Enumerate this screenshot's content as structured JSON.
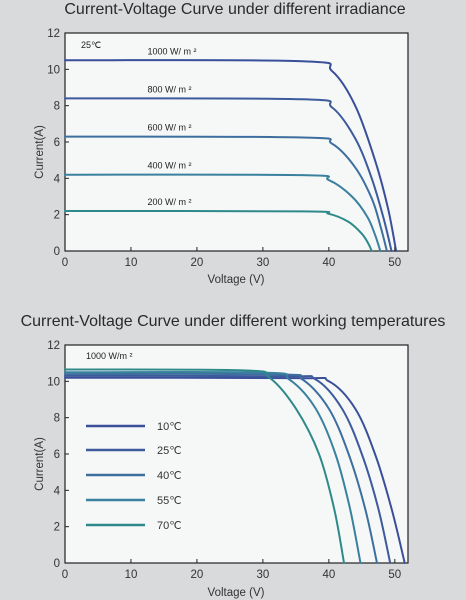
{
  "chart_data": [
    {
      "type": "line",
      "title": "Current-Voltage Curve under different irradiance",
      "xlabel": "Voltage  (V)",
      "ylabel": "Current(A)",
      "xlim": [
        0,
        52
      ],
      "ylim": [
        0,
        12
      ],
      "xticks": [
        0,
        10,
        20,
        30,
        40,
        50
      ],
      "yticks": [
        0,
        2,
        4,
        6,
        8,
        10,
        12
      ],
      "grid": false,
      "annotations": [
        "25℃"
      ],
      "series": [
        {
          "name": "1000 W/ m ²",
          "color": "#3a4f9a",
          "isc": 10.5,
          "voc": 50.2,
          "mpp_v": 40.5,
          "mpp_i": 9.9,
          "points": [
            [
              0,
              10.5
            ],
            [
              36,
              10.45
            ],
            [
              40.5,
              9.9
            ],
            [
              44,
              8.0
            ],
            [
              47,
              5.0
            ],
            [
              49,
              2.3
            ],
            [
              50.2,
              0
            ]
          ]
        },
        {
          "name": "800 W/ m ²",
          "color": "#3c5a9c",
          "isc": 8.4,
          "voc": 49.5,
          "mpp_v": 40.5,
          "mpp_i": 7.9,
          "points": [
            [
              0,
              8.4
            ],
            [
              36,
              8.35
            ],
            [
              40.5,
              7.9
            ],
            [
              44,
              6.2
            ],
            [
              46.5,
              4.0
            ],
            [
              48.3,
              1.8
            ],
            [
              49.5,
              0
            ]
          ]
        },
        {
          "name": "600 W/ m ²",
          "color": "#3d6f9e",
          "isc": 6.3,
          "voc": 48.8,
          "mpp_v": 40.5,
          "mpp_i": 5.9,
          "points": [
            [
              0,
              6.3
            ],
            [
              36,
              6.25
            ],
            [
              40.5,
              5.9
            ],
            [
              44,
              4.6
            ],
            [
              46.5,
              2.9
            ],
            [
              47.8,
              1.4
            ],
            [
              48.8,
              0
            ]
          ]
        },
        {
          "name": "400 W/ m ²",
          "color": "#3a809f",
          "isc": 4.2,
          "voc": 47.8,
          "mpp_v": 40,
          "mpp_i": 3.9,
          "points": [
            [
              0,
              4.2
            ],
            [
              36,
              4.18
            ],
            [
              40,
              3.9
            ],
            [
              43.5,
              3.0
            ],
            [
              45.8,
              1.9
            ],
            [
              47,
              0.9
            ],
            [
              47.8,
              0
            ]
          ]
        },
        {
          "name": "200 W/ m ²",
          "color": "#2e8a8a",
          "isc": 2.2,
          "voc": 46.5,
          "mpp_v": 40,
          "mpp_i": 2.05,
          "points": [
            [
              0,
              2.2
            ],
            [
              36,
              2.18
            ],
            [
              40,
              2.05
            ],
            [
              43,
              1.6
            ],
            [
              45,
              0.95
            ],
            [
              46,
              0.4
            ],
            [
              46.5,
              0
            ]
          ]
        }
      ]
    },
    {
      "type": "line",
      "title": "Current-Voltage Curve under different working temperatures",
      "xlabel": "Voltage  (V)",
      "ylabel": "Current(A)",
      "xlim": [
        0,
        52
      ],
      "ylim": [
        0,
        12
      ],
      "xticks": [
        0,
        10,
        20,
        30,
        40,
        50
      ],
      "yticks": [
        0,
        2,
        4,
        6,
        8,
        10,
        12
      ],
      "grid": false,
      "annotations": [
        "1000 W/m ²"
      ],
      "legend_position": "center-left",
      "series": [
        {
          "name": "10℃",
          "color": "#3a4f9a",
          "isc": 10.2,
          "voc": 51.5,
          "mpp_v": 40,
          "mpp_i": 10.0,
          "points": [
            [
              0,
              10.2
            ],
            [
              35,
              10.18
            ],
            [
              40,
              10.0
            ],
            [
              44,
              8.5
            ],
            [
              47,
              6.0
            ],
            [
              49.5,
              3.0
            ],
            [
              51.5,
              0
            ]
          ]
        },
        {
          "name": "25℃",
          "color": "#3c5a9c",
          "isc": 10.3,
          "voc": 49.3,
          "mpp_v": 38,
          "mpp_i": 10.1,
          "points": [
            [
              0,
              10.3
            ],
            [
              33,
              10.28
            ],
            [
              38,
              10.1
            ],
            [
              42,
              8.5
            ],
            [
              45,
              6.0
            ],
            [
              47.5,
              3.0
            ],
            [
              49.3,
              0
            ]
          ]
        },
        {
          "name": "40℃",
          "color": "#3d6f9e",
          "isc": 10.4,
          "voc": 47.3,
          "mpp_v": 36,
          "mpp_i": 10.1,
          "points": [
            [
              0,
              10.4
            ],
            [
              32,
              10.38
            ],
            [
              36,
              10.1
            ],
            [
              40,
              8.5
            ],
            [
              43,
              6.0
            ],
            [
              45.5,
              3.0
            ],
            [
              47.3,
              0
            ]
          ]
        },
        {
          "name": "55℃",
          "color": "#3a809f",
          "isc": 10.5,
          "voc": 44.8,
          "mpp_v": 34,
          "mpp_i": 10.1,
          "points": [
            [
              0,
              10.5
            ],
            [
              30,
              10.48
            ],
            [
              34,
              10.1
            ],
            [
              38,
              8.5
            ],
            [
              41,
              6.0
            ],
            [
              43.2,
              3.0
            ],
            [
              44.8,
              0
            ]
          ]
        },
        {
          "name": "70℃",
          "color": "#2e8a8a",
          "isc": 10.65,
          "voc": 42.3,
          "mpp_v": 31,
          "mpp_i": 10.2,
          "points": [
            [
              0,
              10.65
            ],
            [
              27,
              10.6
            ],
            [
              31,
              10.2
            ],
            [
              35,
              8.5
            ],
            [
              38.5,
              6.0
            ],
            [
              40.8,
              3.0
            ],
            [
              42.3,
              0
            ]
          ]
        }
      ]
    }
  ]
}
